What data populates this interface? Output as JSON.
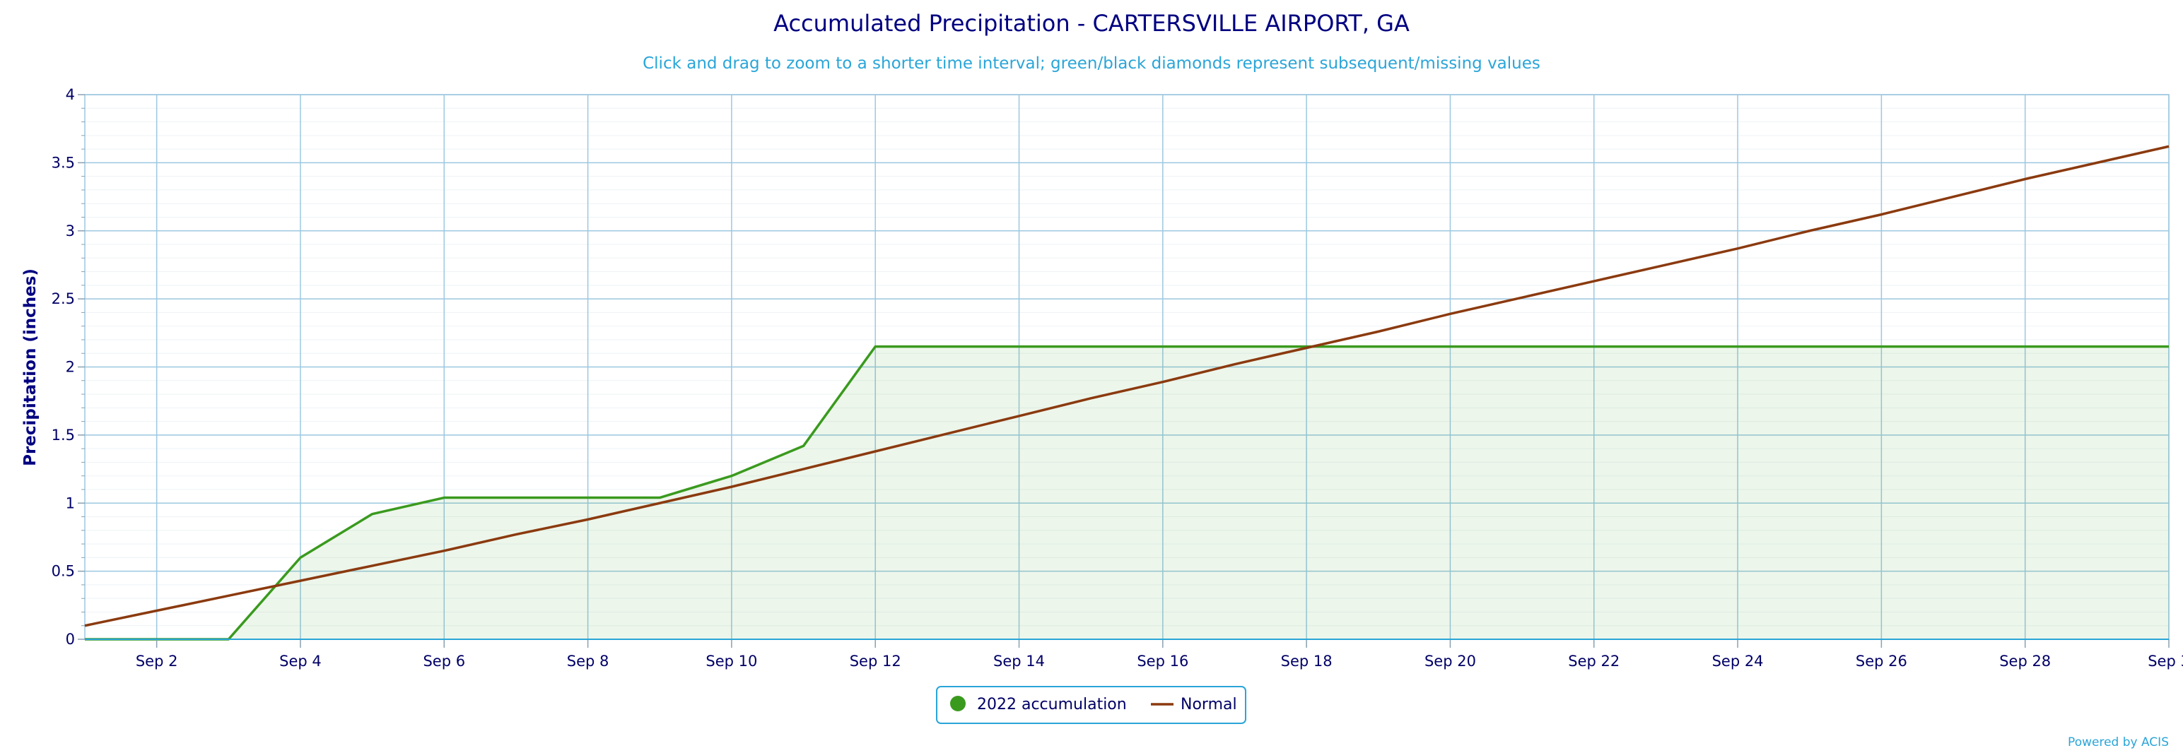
{
  "chart_data": {
    "type": "line",
    "title": "Accumulated Precipitation - CARTERSVILLE AIRPORT, GA",
    "subtitle": "Click and drag to zoom to a shorter time interval; green/black diamonds represent subsequent/missing values",
    "ylabel": "Precipitation (inches)",
    "xlabel": "",
    "ylim": [
      0,
      4
    ],
    "yticks": [
      0,
      0.5,
      1,
      1.5,
      2,
      2.5,
      3,
      3.5,
      4
    ],
    "ytick_labels": [
      "0",
      "0.5",
      "1",
      "1.5",
      "2",
      "2.5",
      "3",
      "3.5",
      "4"
    ],
    "xlim": [
      1,
      30
    ],
    "xticks": [
      2,
      4,
      6,
      8,
      10,
      12,
      14,
      16,
      18,
      20,
      22,
      24,
      26,
      28,
      30
    ],
    "xtick_labels": [
      "Sep 2",
      "Sep 4",
      "Sep 6",
      "Sep 8",
      "Sep 10",
      "Sep 12",
      "Sep 14",
      "Sep 16",
      "Sep 18",
      "Sep 20",
      "Sep 22",
      "Sep 24",
      "Sep 26",
      "Sep 28",
      "Sep 3"
    ],
    "grid": true,
    "legend_position": "bottom-center",
    "series": [
      {
        "name": "2022 accumulation",
        "color": "#3a9a1e",
        "fill": "area",
        "x": [
          1,
          2,
          3,
          4,
          5,
          6,
          7,
          8,
          9,
          10,
          11,
          12,
          13,
          14,
          15,
          16,
          17,
          18,
          19,
          20,
          21,
          22,
          23,
          24,
          25,
          26,
          27,
          28,
          29,
          30
        ],
        "values": [
          0,
          0,
          0,
          0.6,
          0.92,
          1.04,
          1.04,
          1.04,
          1.04,
          1.2,
          1.42,
          2.15,
          2.15,
          2.15,
          2.15,
          2.15,
          2.15,
          2.15,
          2.15,
          2.15,
          2.15,
          2.15,
          2.15,
          2.15,
          2.15,
          2.15,
          2.15,
          2.15,
          2.15,
          2.15
        ]
      },
      {
        "name": "Normal",
        "color": "#8b3a0f",
        "x": [
          1,
          2,
          3,
          4,
          5,
          6,
          7,
          8,
          9,
          10,
          11,
          12,
          13,
          14,
          15,
          16,
          17,
          18,
          19,
          20,
          21,
          22,
          23,
          24,
          25,
          26,
          27,
          28,
          29,
          30
        ],
        "values": [
          0.1,
          0.21,
          0.32,
          0.43,
          0.54,
          0.65,
          0.77,
          0.88,
          1.0,
          1.12,
          1.25,
          1.38,
          1.51,
          1.64,
          1.77,
          1.89,
          2.02,
          2.14,
          2.26,
          2.39,
          2.51,
          2.63,
          2.75,
          2.87,
          3.0,
          3.12,
          3.25,
          3.38,
          3.5,
          3.62
        ]
      }
    ]
  },
  "credit": "Powered by ACIS"
}
